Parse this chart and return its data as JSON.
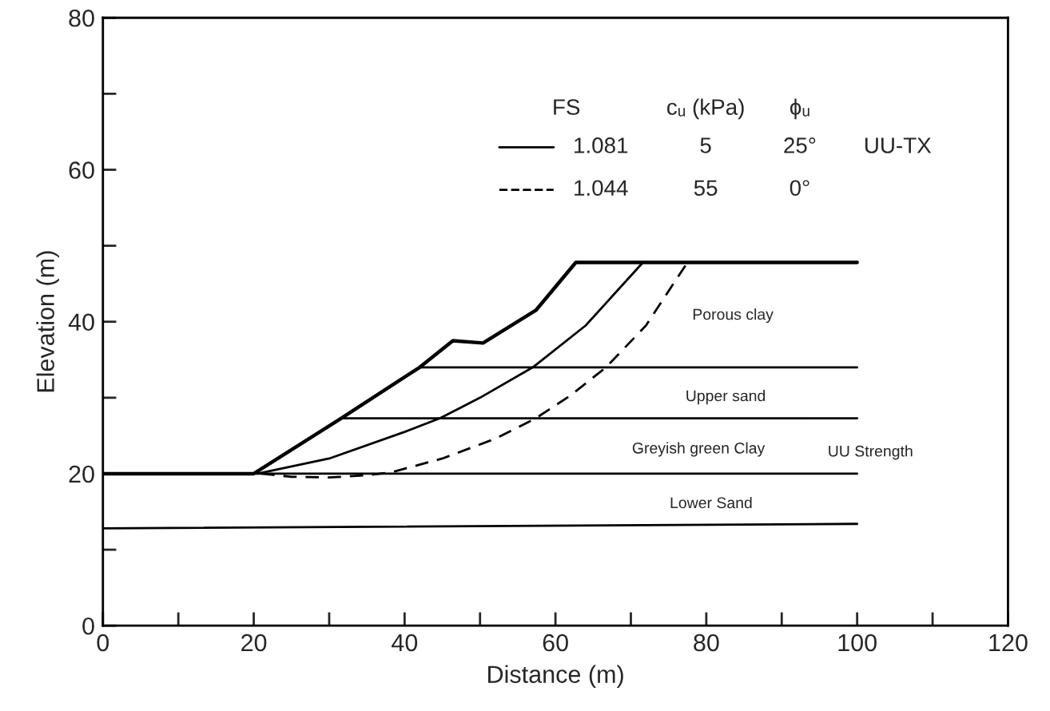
{
  "chart_data": {
    "type": "line",
    "xlabel": "Distance (m)",
    "ylabel": "Elevation (m)",
    "xlim": [
      0,
      120
    ],
    "ylim": [
      0,
      80
    ],
    "xticks": [
      0,
      {
        "value": 10,
        "label": null
      },
      20,
      {
        "value": 30,
        "label": null
      },
      40,
      {
        "value": 50,
        "label": null
      },
      60,
      {
        "value": 70,
        "label": null
      },
      80,
      {
        "value": 90,
        "label": null
      },
      100,
      {
        "value": 110,
        "label": null
      },
      120
    ],
    "yticks": [
      0,
      {
        "value": 10,
        "label": null
      },
      20,
      {
        "value": 30,
        "label": null
      },
      40,
      {
        "value": 50,
        "label": null
      },
      60,
      {
        "value": 70,
        "label": null
      },
      80
    ],
    "grid": false,
    "legend": "top right",
    "marker": "none",
    "series": [
      {
        "color": "#000000",
        "x": [
          0,
          20,
          31.6,
          42,
          46.4,
          50.4,
          57.4,
          62.7,
          100
        ],
        "values": [
          20,
          20,
          27.3,
          34,
          37.5,
          37.2,
          41.5,
          47.8,
          47.8
        ]
      },
      {
        "color": "#000000",
        "x": [
          42,
          100
        ],
        "values": [
          34,
          34
        ]
      },
      {
        "color": "#000000",
        "x": [
          31.6,
          100
        ],
        "values": [
          27.3,
          27.3
        ]
      },
      {
        "color": "#000000",
        "x": [
          20,
          100
        ],
        "values": [
          20,
          20
        ]
      },
      {
        "color": "#000000",
        "x": [
          0,
          100
        ],
        "values": [
          12.8,
          13.4
        ]
      },
      {
        "name": "1.081",
        "color": "#000000",
        "line_style": "solid",
        "x": [
          20.5,
          30,
          40,
          44.7,
          50,
          57,
          64,
          71.6
        ],
        "values": [
          20,
          22,
          25.5,
          27.3,
          30,
          34,
          39.5,
          47.8
        ]
      },
      {
        "name": "1.044",
        "color": "#000000",
        "line_style": "dashed",
        "x": [
          21,
          25,
          30,
          35,
          38.3,
          45,
          52,
          57.4,
          62,
          66.7,
          72,
          77.5
        ],
        "values": [
          20,
          19.6,
          19.5,
          19.8,
          20.2,
          22,
          24.6,
          27.3,
          30.3,
          34,
          39.5,
          47.8
        ]
      }
    ],
    "annotations": [
      "FS",
      "cᵤ (kPa)",
      "ϕᵤ",
      "5",
      "25°",
      "UU-TX",
      "55",
      "0°",
      "Porous clay",
      "Upper sand",
      "Greyish green Clay",
      "UU Strength",
      "Lower Sand"
    ]
  }
}
